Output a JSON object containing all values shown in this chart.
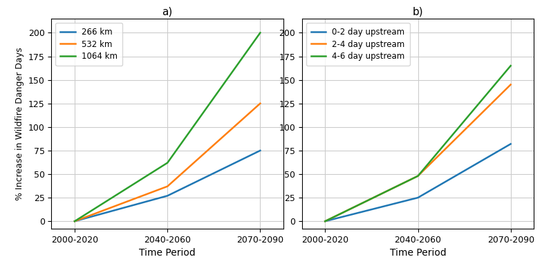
{
  "x_labels": [
    "2000-2020",
    "2040-2060",
    "2070-2090"
  ],
  "x_positions": [
    0,
    1,
    2
  ],
  "panel_a": {
    "title": "a)",
    "series": [
      {
        "label": "266 km",
        "color": "#1f77b4",
        "values": [
          0,
          27,
          75
        ]
      },
      {
        "label": "532 km",
        "color": "#ff7f0e",
        "values": [
          0,
          37,
          125
        ]
      },
      {
        "label": "1064 km",
        "color": "#2ca02c",
        "values": [
          0,
          62,
          200
        ]
      }
    ],
    "ylabel": "% Increase in Wildfire Danger Days",
    "ylim": [
      -8,
      215
    ],
    "yticks": [
      0,
      25,
      50,
      75,
      100,
      125,
      150,
      175,
      200
    ]
  },
  "panel_b": {
    "title": "b)",
    "series": [
      {
        "label": "0-2 day upstream",
        "color": "#1f77b4",
        "values": [
          0,
          25,
          82
        ]
      },
      {
        "label": "2-4 day upstream",
        "color": "#ff7f0e",
        "values": [
          0,
          48,
          145
        ]
      },
      {
        "label": "4-6 day upstream",
        "color": "#2ca02c",
        "values": [
          0,
          48,
          165
        ]
      }
    ],
    "ylim": [
      -8,
      215
    ],
    "yticks": [
      0,
      25,
      50,
      75,
      100,
      125,
      150,
      175,
      200
    ]
  },
  "xlabel": "Time Period",
  "grid_color": "#cccccc",
  "linewidth": 1.8
}
